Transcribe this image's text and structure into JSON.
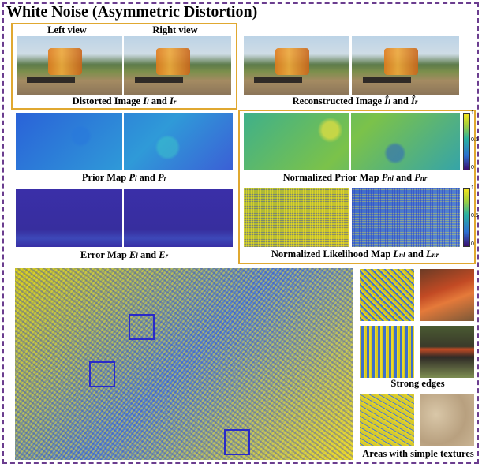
{
  "title": "White Noise (Asymmetric Distortion)",
  "labels": {
    "left_view": "Left view",
    "right_view": "Right view"
  },
  "captions": {
    "distorted": {
      "text": "Distorted Image ",
      "a": "I",
      "a_sub": "l",
      "and": " and ",
      "b": "I",
      "b_sub": "r"
    },
    "reconstructed": {
      "text": "Reconstructed Image ",
      "a": "Î",
      "a_sub": "l",
      "and": " and ",
      "b": "Î",
      "b_sub": "r"
    },
    "prior": {
      "text": "Prior Map ",
      "a": "P",
      "a_sub": "l",
      "and": " and ",
      "b": "P",
      "b_sub": "r"
    },
    "norm_prior": {
      "text": "Normalized Prior Map ",
      "a": "P",
      "a_sub": "nl",
      "and": " and ",
      "b": "P",
      "b_sub": "nr"
    },
    "error": {
      "text": "Error Map ",
      "a": "E",
      "a_sub": "l",
      "and": " and ",
      "b": "E",
      "b_sub": "r"
    },
    "norm_lik": {
      "text": "Normalized Likelihood Map ",
      "a": "L",
      "a_sub": "nl",
      "and": " and ",
      "b": "L",
      "b_sub": "nr"
    },
    "strong_edges": "Strong edges",
    "simple_textures": "Areas with simple textures"
  },
  "colorbar": {
    "ticks": [
      "1",
      "0.5",
      "0"
    ]
  }
}
